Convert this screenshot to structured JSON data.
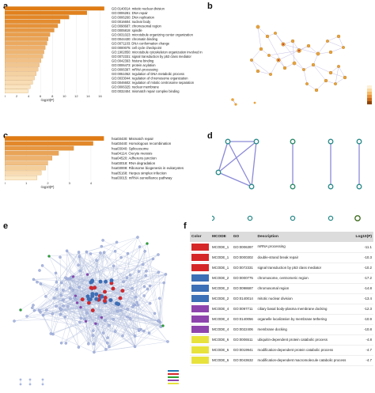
{
  "panels": {
    "a": "a",
    "b": "b",
    "c": "c",
    "d": "d",
    "e": "e",
    "f": "f"
  },
  "chart_data": [
    {
      "type": "bar",
      "orientation": "horizontal",
      "xlabel": "-log10(P)",
      "xticks": [
        0,
        2,
        4,
        6,
        8,
        10,
        12,
        14,
        16
      ],
      "xlim": [
        0,
        17
      ],
      "categories": [
        "GO:0140014: mitotic nuclear division",
        "GO:0006281: DNA repair",
        "GO:0006260: DNA replication",
        "GO:0016604: nuclear body",
        "GO:0098687: chromosomal region",
        "GO:0005819: spindle",
        "GO:0031023: microtubule organizing center organization",
        "GO:0044430: chromatin binding",
        "GO:0071103: DNA conformation change",
        "GO:0000075: cell cycle checkpoint",
        "GO:1902850: microtubule cytoskeleton organization involved in mitosis",
        "GO:0072331: signal transduction by p53 class mediator",
        "GO:0042393: histone binding",
        "GO:0006473: protein acylation",
        "GO:0006397: mRNA processing",
        "GO:0051052: regulation of DNA metabolic process",
        "GO:0033044: regulation of chromosome organization",
        "GO:0046602: regulation of mitotic centrosome separation",
        "GO:0006325: nuclear membrane",
        "GO:0032404: mismatch repair complex binding"
      ],
      "values": [
        16.7,
        13.8,
        10.8,
        9.3,
        8.9,
        8.3,
        7.6,
        7.3,
        7.1,
        6.8,
        6.6,
        6.4,
        6.1,
        5.8,
        5.6,
        5.3,
        5.0,
        4.7,
        4.3,
        3.9
      ]
    },
    {
      "type": "bar",
      "orientation": "horizontal",
      "xlabel": "-log10(P)",
      "xticks": [
        0,
        1,
        2,
        3,
        4
      ],
      "xlim": [
        0,
        4.7
      ],
      "categories": [
        "hsa03430: Mismatch repair",
        "hsa03440: Homologous recombination",
        "hsa03040: Spliceosome",
        "hsa04114: Oocyte meiosis",
        "hsa04520: Adherens junction",
        "hsa03018: RNA degradation",
        "hsa03008: Ribosome biogenesis in eukaryotes",
        "hsa05168: Herpes simplex infection",
        "hsa03015: mRNA surveillance pathway"
      ],
      "values": [
        4.6,
        4.1,
        3.2,
        2.5,
        2.2,
        2.0,
        1.9,
        1.7,
        1.5
      ]
    }
  ],
  "table": {
    "headers": {
      "color": "Color",
      "mcode": "MCODE",
      "go": "GO",
      "desc": "Description",
      "log": "Log10(P)"
    },
    "rows": [
      {
        "color": "#d62728",
        "mcode": "MCODE_1",
        "go": "GO:0006397",
        "desc": "mRNA processing",
        "log": "-11.1"
      },
      {
        "color": "#d62728",
        "mcode": "MCODE_1",
        "go": "GO:0000302",
        "desc": "double-strand break repair",
        "log": "-10.3"
      },
      {
        "color": "#d62728",
        "mcode": "MCODE_1",
        "go": "GO:0072331",
        "desc": "signal transduction by p53 class mediator",
        "log": "-10.2"
      },
      {
        "color": "#3b6fb6",
        "mcode": "MCODE_2",
        "go": "GO:0000775",
        "desc": "chromosome, centromeric region",
        "log": "-17.2"
      },
      {
        "color": "#3b6fb6",
        "mcode": "MCODE_2",
        "go": "GO:0098687",
        "desc": "chromosomal region",
        "log": "-14.8"
      },
      {
        "color": "#3b6fb6",
        "mcode": "MCODE_2",
        "go": "GO:0140014",
        "desc": "mitotic nuclear division",
        "log": "-13.4"
      },
      {
        "color": "#8e44ad",
        "mcode": "MCODE_4",
        "go": "GO:0097711",
        "desc": "ciliary basal body-plasma membrane docking",
        "log": "-12.3"
      },
      {
        "color": "#8e44ad",
        "mcode": "MCODE_4",
        "go": "GO:0140056",
        "desc": "organelle localization by membrane tethering",
        "log": "-10.9"
      },
      {
        "color": "#8e44ad",
        "mcode": "MCODE_4",
        "go": "GO:0022406",
        "desc": "membrane docking",
        "log": "-10.8"
      },
      {
        "color": "#e8e23c",
        "mcode": "MCODE_6",
        "go": "GO:0006511",
        "desc": "ubiquitin-dependent protein catabolic process",
        "log": "-4.8"
      },
      {
        "color": "#e8e23c",
        "mcode": "MCODE_6",
        "go": "GO:0019941",
        "desc": "modification-dependent protein catabolic process",
        "log": "-4.7"
      },
      {
        "color": "#e8e23c",
        "mcode": "MCODE_6",
        "go": "GO:0043632",
        "desc": "modification-dependent macromolecule catabolic process",
        "log": "-4.7"
      }
    ]
  }
}
